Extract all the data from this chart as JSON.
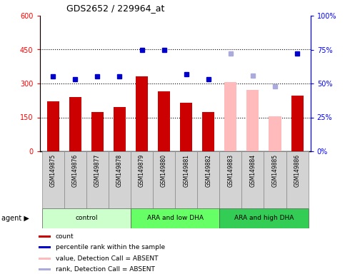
{
  "title": "GDS2652 / 229964_at",
  "samples": [
    "GSM149875",
    "GSM149876",
    "GSM149877",
    "GSM149878",
    "GSM149879",
    "GSM149880",
    "GSM149881",
    "GSM149882",
    "GSM149883",
    "GSM149884",
    "GSM149885",
    "GSM149886"
  ],
  "bar_values": [
    220,
    240,
    175,
    195,
    330,
    265,
    215,
    175,
    305,
    270,
    155,
    245
  ],
  "bar_colors": [
    "#cc0000",
    "#cc0000",
    "#cc0000",
    "#cc0000",
    "#cc0000",
    "#cc0000",
    "#cc0000",
    "#cc0000",
    "#ffbbbb",
    "#ffbbbb",
    "#ffbbbb",
    "#cc0000"
  ],
  "rank_values": [
    55,
    53,
    55,
    55,
    75,
    75,
    57,
    53,
    72,
    56,
    48,
    72
  ],
  "rank_colors": [
    "#0000cc",
    "#0000cc",
    "#0000cc",
    "#0000cc",
    "#0000cc",
    "#0000cc",
    "#0000cc",
    "#0000cc",
    "#aaaadd",
    "#aaaadd",
    "#aaaadd",
    "#0000cc"
  ],
  "groups": [
    {
      "label": "control",
      "start": 0,
      "end": 4,
      "color": "#ccffcc"
    },
    {
      "label": "ARA and low DHA",
      "start": 4,
      "end": 8,
      "color": "#66ff66"
    },
    {
      "label": "ARA and high DHA",
      "start": 8,
      "end": 12,
      "color": "#33cc55"
    }
  ],
  "ylim_left": [
    0,
    600
  ],
  "ylim_right": [
    0,
    100
  ],
  "yticks_left": [
    0,
    150,
    300,
    450,
    600
  ],
  "ytick_labels_left": [
    "0",
    "150",
    "300",
    "450",
    "600"
  ],
  "yticks_right": [
    0,
    25,
    50,
    75,
    100
  ],
  "ytick_labels_right": [
    "0%",
    "25%",
    "50%",
    "75%",
    "100%"
  ],
  "hlines": [
    150,
    300,
    450
  ],
  "legend_items": [
    {
      "label": "count",
      "color": "#cc0000",
      "type": "square"
    },
    {
      "label": "percentile rank within the sample",
      "color": "#0000cc",
      "type": "square"
    },
    {
      "label": "value, Detection Call = ABSENT",
      "color": "#ffbbbb",
      "type": "square"
    },
    {
      "label": "rank, Detection Call = ABSENT",
      "color": "#aaaadd",
      "type": "square"
    }
  ]
}
